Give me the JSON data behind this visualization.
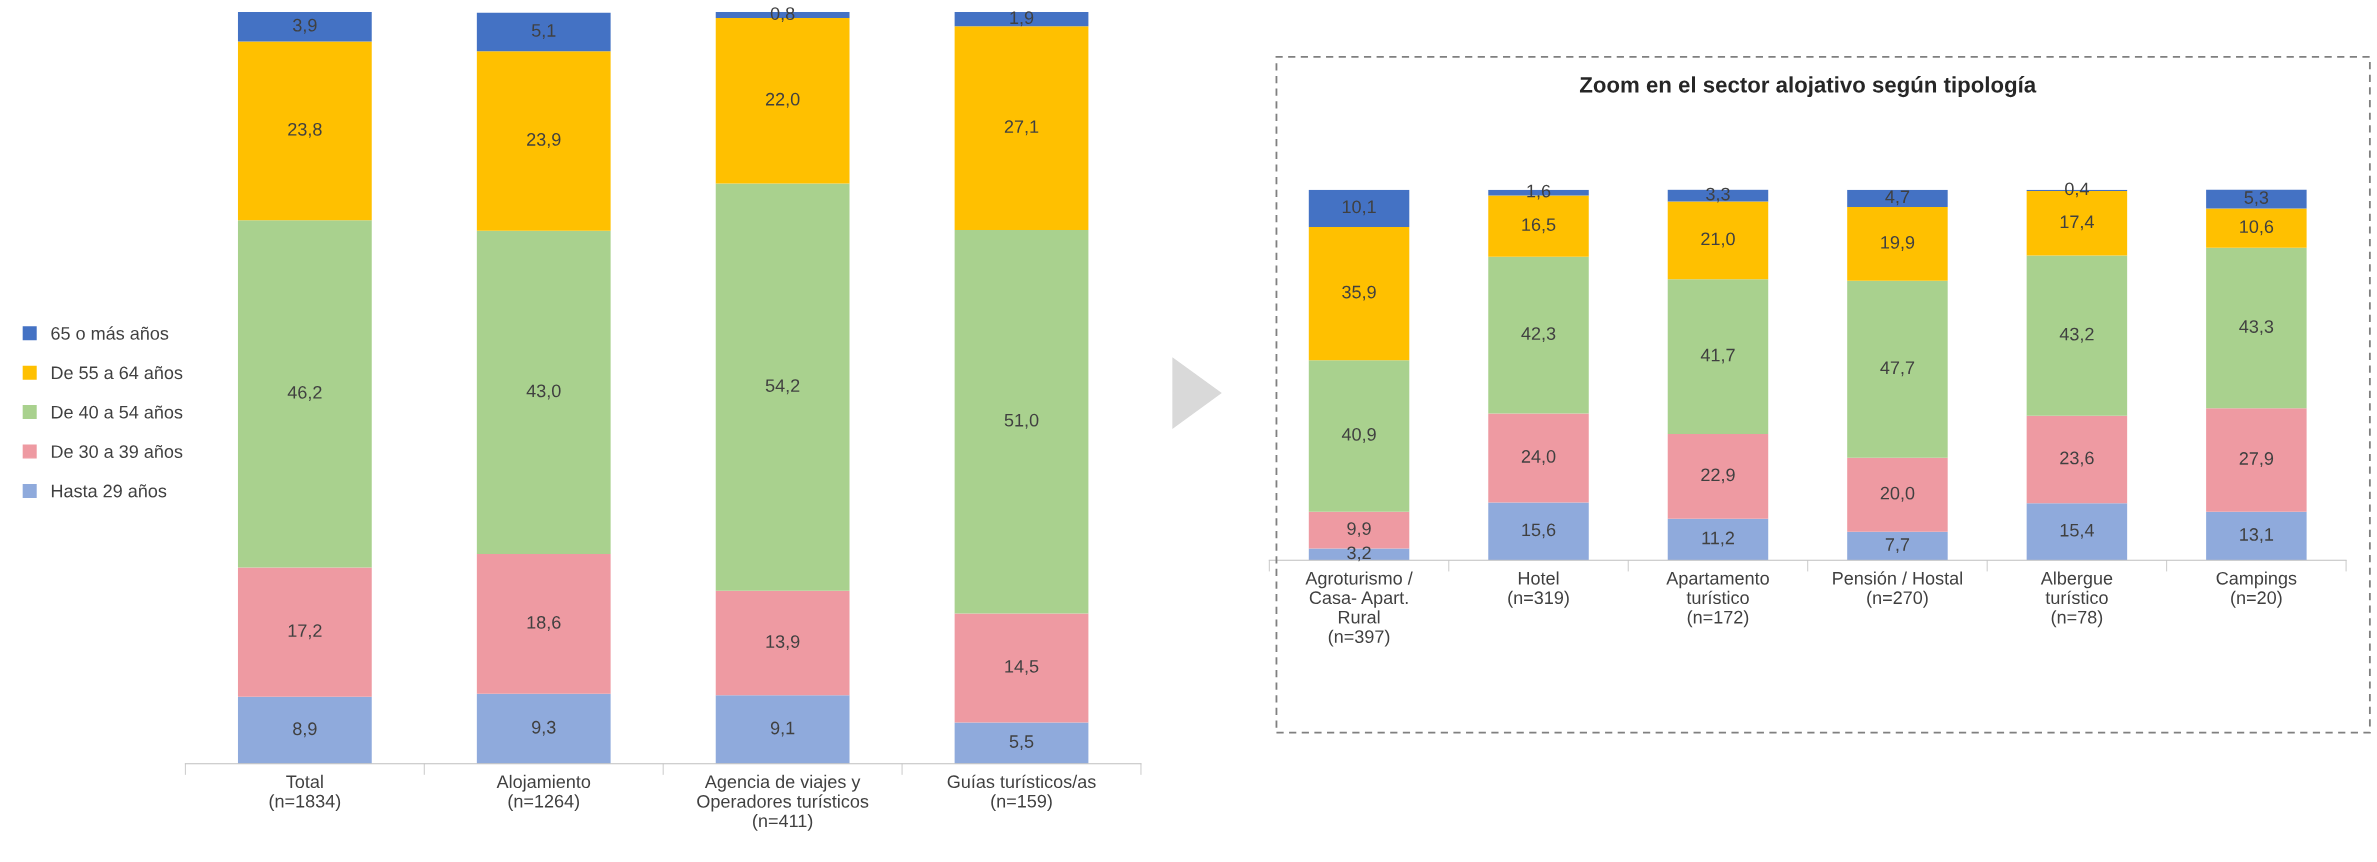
{
  "chart_data": [
    {
      "type": "bar",
      "stacked": true,
      "legend": "left",
      "ylim": [
        0,
        100
      ],
      "tick_labels": "x",
      "categories": [
        "Total\n(n=1834)",
        "Alojamiento\n(n=1264)",
        "Agencia de viajes y\nOperadores turísticos\n(n=411)",
        "Guías turísticos/as\n(n=159)"
      ],
      "series": [
        {
          "name": "Hasta 29 años",
          "color": "#8faadc",
          "values": [
            8.9,
            9.3,
            9.1,
            5.5
          ],
          "value_labels": [
            "8,9",
            "9,3",
            "9,1",
            "5,5"
          ]
        },
        {
          "name": "De 30 a 39 años",
          "color": "#ee9aa2",
          "values": [
            17.2,
            18.6,
            13.9,
            14.5
          ],
          "value_labels": [
            "17,2",
            "18,6",
            "13,9",
            "14,5"
          ]
        },
        {
          "name": "De 40 a 54 años",
          "color": "#a9d18e",
          "values": [
            46.2,
            43.0,
            54.2,
            51.0
          ],
          "value_labels": [
            "46,2",
            "43,0",
            "54,2",
            "51,0"
          ]
        },
        {
          "name": "De 55 a 64 años",
          "color": "#ffc000",
          "values": [
            23.8,
            23.9,
            22.0,
            27.1
          ],
          "value_labels": [
            "23,8",
            "23,9",
            "22,0",
            "27,1"
          ]
        },
        {
          "name": "65 o más años",
          "color": "#4472c4",
          "values": [
            3.9,
            5.1,
            0.8,
            1.9
          ],
          "value_labels": [
            "3,9",
            "5,1",
            "0,8",
            "1,9"
          ]
        }
      ]
    },
    {
      "type": "bar",
      "stacked": true,
      "legend": false,
      "ylim": [
        0,
        100
      ],
      "tick_labels": "x",
      "title": "Zoom en el sector alojativo según tipología",
      "categories": [
        "Agroturismo /\nCasa- Apart.\nRural\n(n=397)",
        "Hotel\n(n=319)",
        "Apartamento\nturístico\n(n=172)",
        "Pensión / Hostal\n(n=270)",
        "Albergue\nturístico\n(n=78)",
        "Campings\n(n=20)"
      ],
      "series": [
        {
          "color": "#8faadc",
          "values": [
            3.2,
            15.6,
            11.2,
            7.7,
            15.4,
            13.1
          ],
          "value_labels": [
            "3,2",
            "15,6",
            "11,2",
            "7,7",
            "15,4",
            "13,1"
          ]
        },
        {
          "color": "#ee9aa2",
          "values": [
            9.9,
            24.0,
            22.9,
            20.0,
            23.6,
            27.9
          ],
          "value_labels": [
            "9,9",
            "24,0",
            "22,9",
            "20,0",
            "23,6",
            "27,9"
          ]
        },
        {
          "color": "#a9d18e",
          "values": [
            40.9,
            42.3,
            41.7,
            47.7,
            43.2,
            43.3
          ],
          "value_labels": [
            "40,9",
            "42,3",
            "41,7",
            "47,7",
            "43,2",
            "43,3"
          ]
        },
        {
          "color": "#ffc000",
          "values": [
            35.9,
            16.5,
            21.0,
            19.9,
            17.4,
            10.6
          ],
          "value_labels": [
            "35,9",
            "16,5",
            "21,0",
            "19,9",
            "17,4",
            "10,6"
          ]
        },
        {
          "color": "#4472c4",
          "values": [
            10.1,
            1.6,
            3.3,
            4.7,
            0.4,
            5.3
          ],
          "value_labels": [
            "10,1",
            "1,6",
            "3,3",
            "4,7",
            "0,4",
            "5,3"
          ]
        }
      ]
    }
  ]
}
